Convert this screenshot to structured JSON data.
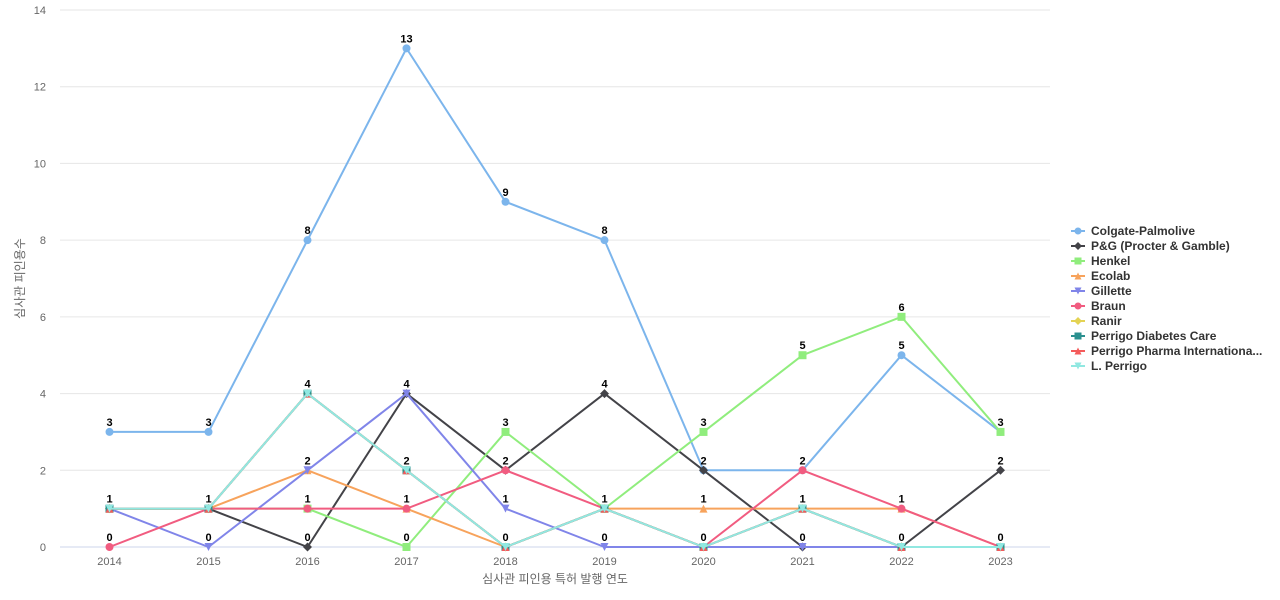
{
  "chart_data": {
    "type": "line",
    "title": "",
    "xlabel": "심사관 피인용 특허 발행 연도",
    "ylabel": "심사관 피인용수",
    "ylim": [
      0,
      14
    ],
    "yticks": [
      0,
      2,
      4,
      6,
      8,
      10,
      12,
      14
    ],
    "grid": true,
    "legend_position": "right",
    "categories": [
      "2014",
      "2015",
      "2016",
      "2017",
      "2018",
      "2019",
      "2020",
      "2021",
      "2022",
      "2023"
    ],
    "series": [
      {
        "name": "Colgate-Palmolive",
        "color": "#7cb5ec",
        "marker": "circle",
        "values": [
          3,
          3,
          8,
          13,
          9,
          8,
          2,
          2,
          5,
          3
        ],
        "labels": [
          3,
          3,
          8,
          13,
          9,
          8,
          null,
          null,
          5,
          null
        ]
      },
      {
        "name": "P&G (Procter & Gamble)",
        "color": "#434348",
        "marker": "diamond",
        "values": [
          1,
          1,
          0,
          4,
          2,
          4,
          2,
          0,
          0,
          2
        ],
        "labels": [
          null,
          null,
          0,
          null,
          null,
          4,
          2,
          0,
          0,
          2
        ]
      },
      {
        "name": "Henkel",
        "color": "#90ed7d",
        "marker": "square",
        "values": [
          1,
          1,
          1,
          0,
          3,
          1,
          3,
          5,
          6,
          3
        ],
        "labels": [
          null,
          null,
          null,
          0,
          3,
          null,
          3,
          5,
          6,
          3
        ]
      },
      {
        "name": "Ecolab",
        "color": "#f7a35c",
        "marker": "triangle",
        "values": [
          1,
          1,
          2,
          1,
          0,
          1,
          1,
          1,
          1,
          0
        ],
        "labels": [
          null,
          null,
          null,
          null,
          null,
          null,
          1,
          null,
          1,
          null
        ]
      },
      {
        "name": "Gillette",
        "color": "#8085e9",
        "marker": "triangle-down",
        "values": [
          1,
          0,
          2,
          4,
          1,
          0,
          0,
          0,
          0,
          0
        ],
        "labels": [
          1,
          0,
          2,
          4,
          1,
          0,
          null,
          null,
          null,
          null
        ]
      },
      {
        "name": "Braun",
        "color": "#f15c80",
        "marker": "circle",
        "values": [
          0,
          1,
          1,
          1,
          2,
          1,
          0,
          2,
          1,
          0
        ],
        "labels": [
          0,
          1,
          1,
          1,
          2,
          1,
          0,
          2,
          null,
          null
        ]
      },
      {
        "name": "Ranir",
        "color": "#e4d354",
        "marker": "diamond",
        "values": [
          1,
          1,
          4,
          2,
          0,
          1,
          0,
          1,
          0,
          0
        ],
        "labels": [
          null,
          null,
          null,
          null,
          null,
          null,
          null,
          null,
          null,
          null
        ]
      },
      {
        "name": "Perrigo Diabetes Care",
        "color": "#2b908f",
        "marker": "square",
        "values": [
          1,
          1,
          4,
          2,
          0,
          1,
          0,
          1,
          0,
          0
        ],
        "labels": [
          null,
          null,
          null,
          null,
          null,
          null,
          null,
          null,
          null,
          null
        ]
      },
      {
        "name": "Perrigo Pharma Internationa...",
        "color": "#f45b5b",
        "marker": "triangle",
        "values": [
          1,
          1,
          4,
          2,
          0,
          1,
          0,
          1,
          0,
          0
        ],
        "labels": [
          null,
          null,
          null,
          null,
          null,
          null,
          null,
          null,
          null,
          null
        ]
      },
      {
        "name": "L. Perrigo",
        "color": "#91e8e1",
        "marker": "triangle-down",
        "values": [
          1,
          1,
          4,
          2,
          0,
          1,
          0,
          1,
          0,
          0
        ],
        "labels": [
          null,
          null,
          4,
          2,
          0,
          null,
          null,
          1,
          null,
          0
        ]
      }
    ]
  }
}
